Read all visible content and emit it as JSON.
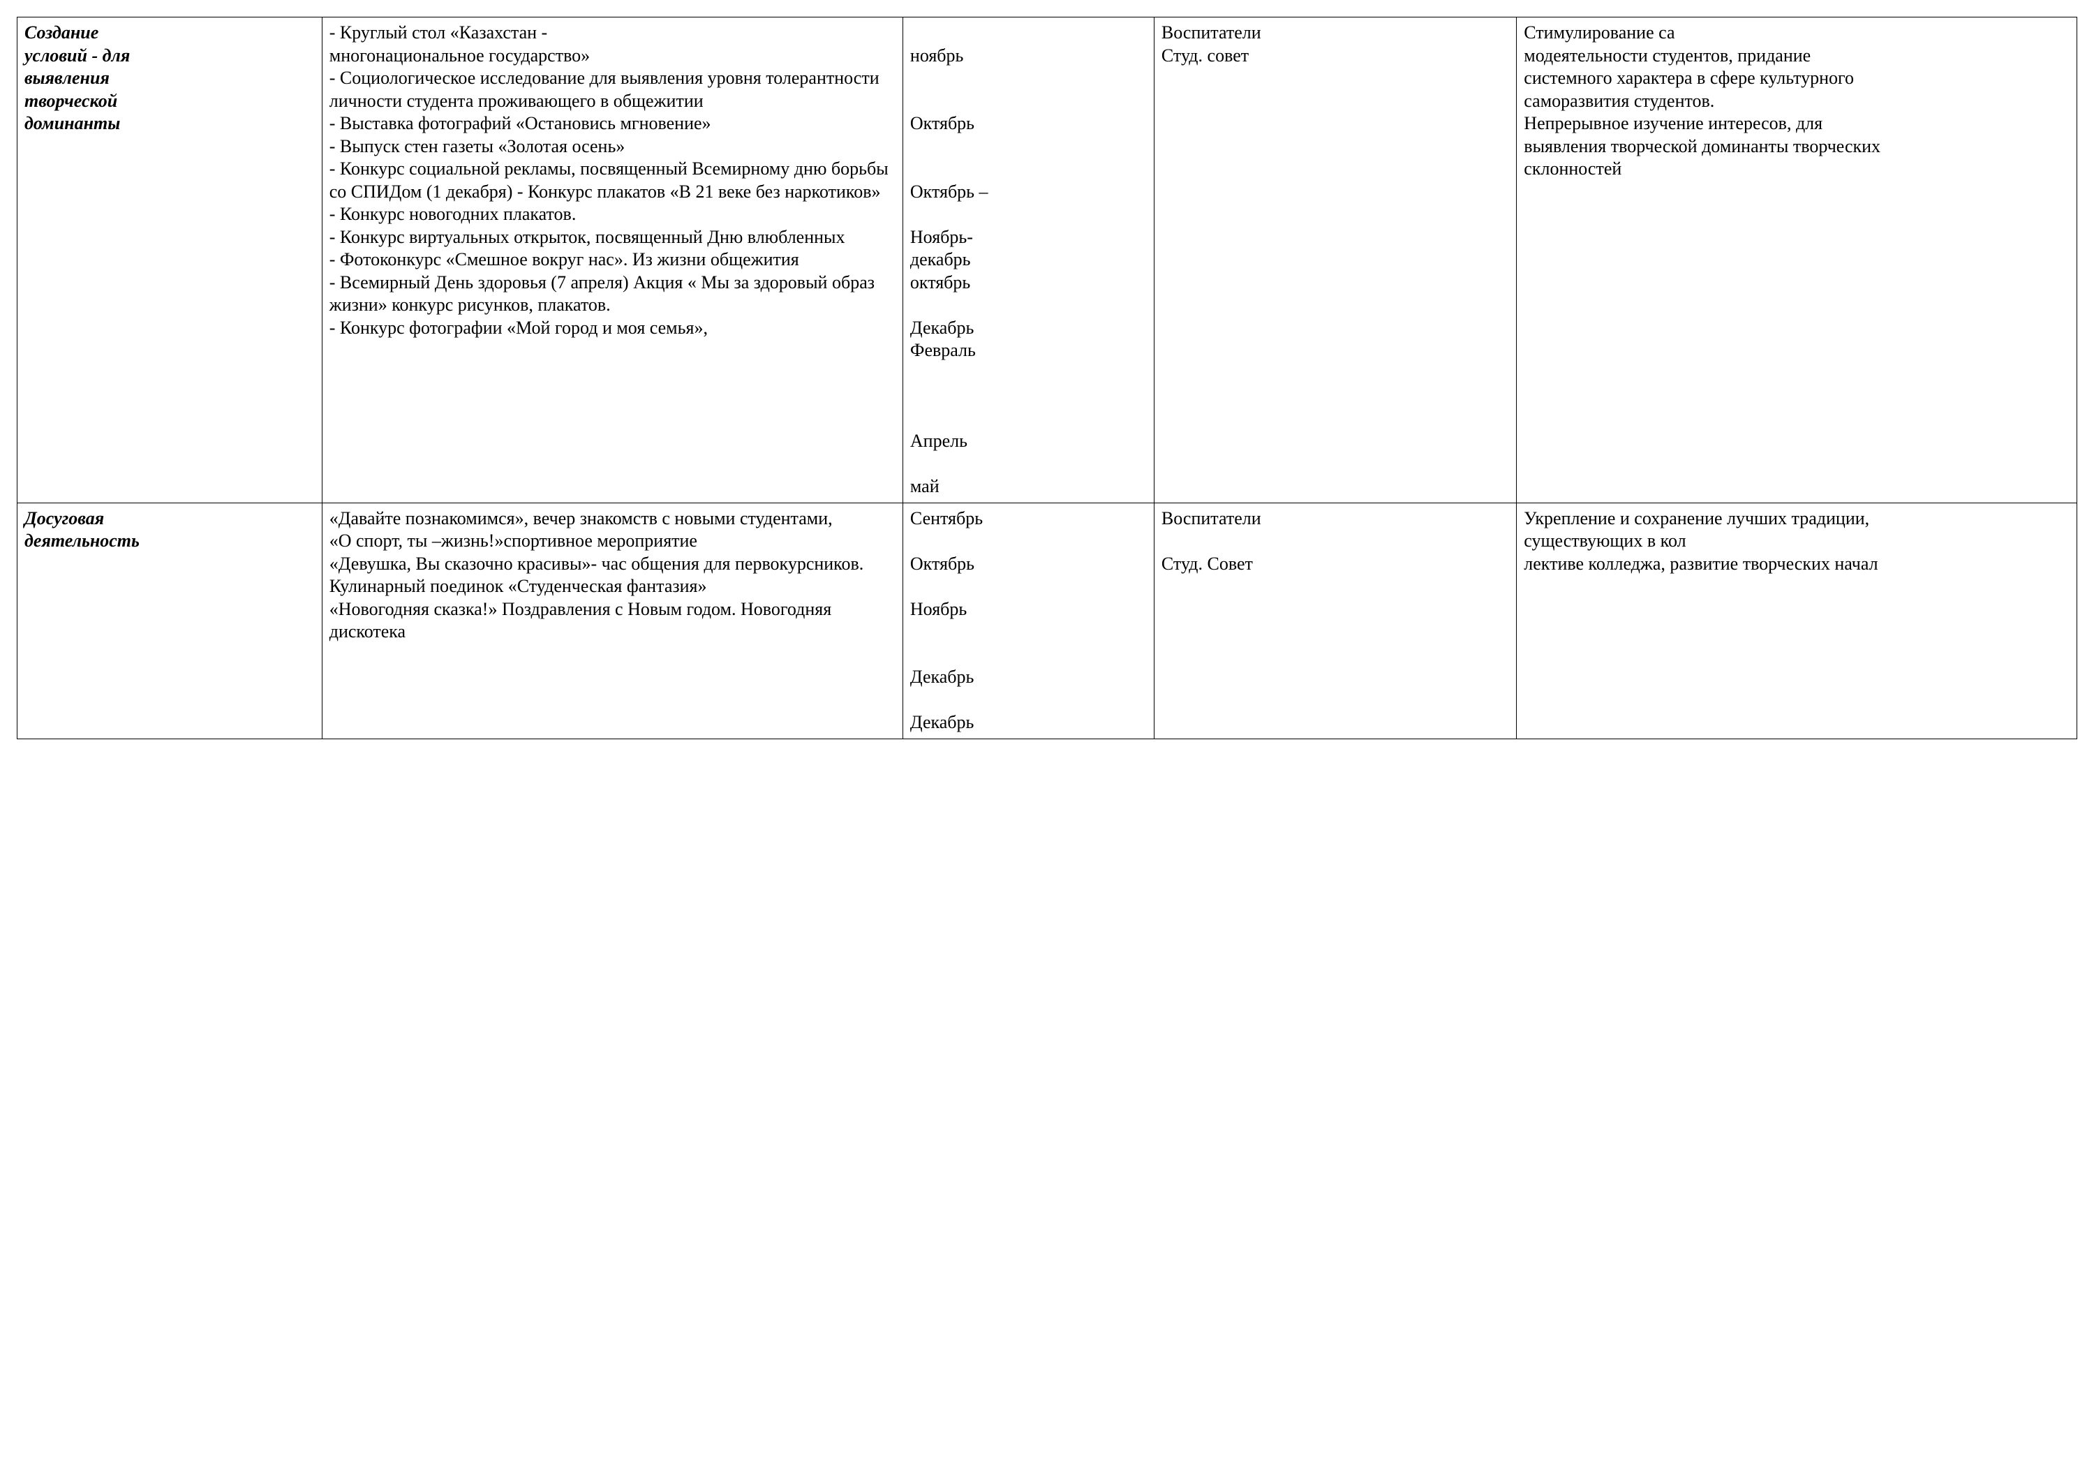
{
  "table": {
    "border_color": "#000000",
    "background_color": "#ffffff",
    "text_color": "#000000",
    "font_family": "Times New Roman",
    "font_size_pt": 20,
    "column_widths_pct": [
      14.8,
      28.2,
      12.2,
      17.6,
      18.2,
      9.0
    ],
    "rows": [
      {
        "cells": [
          {
            "style": "bold-italic",
            "lines": [
              "Создание",
              "условий -  для",
              "выявления",
              "творческой",
              "доминанты"
            ]
          },
          {
            "lines": [
              "- Круглый стол «Казахстан -",
              "многонациональное государство»",
              "- Социологическое исследование для выявления уровня толерантности личности студента проживающего в общежитии",
              "- Выставка фотографий «Остановись мгновение»",
              "- Выпуск стен газеты «Золотая осень»",
              "- Конкурс социальной рекламы, посвященный Всемирному дню борьбы со СПИДом (1 декабря)   - Конкурс плакатов «В 21 веке без наркотиков»",
              " - Конкурс новогодних плакатов.",
              " - Конкурс виртуальных открыток, посвященный Дню влюбленных",
              " - Фотоконкурс «Смешное вокруг нас». Из жизни общежития",
              " - Всемирный День здоровья (7 апреля) Акция « Мы за здоровый образ жизни» конкурс рисунков, плакатов.",
              " - Конкурс фотографии «Мой город и моя семья»,",
              "",
              "",
              ""
            ]
          },
          {
            "lines": [
              "",
              "ноябрь",
              "",
              "",
              "Октябрь",
              "",
              "",
              "Октябрь –",
              "",
              "Ноябрь-",
              "декабрь",
              "октябрь",
              "",
              "Декабрь",
              "Февраль",
              "",
              "",
              "",
              "Апрель",
              "",
              "май"
            ]
          },
          {
            "lines": [
              "Воспитатели",
              "Студ. совет"
            ]
          },
          {
            "lines": [
              "Стимулирование са",
              "модеятельности студентов, придание системного характера в сфере культурного саморазвития студентов.",
              "Непрерывное изучение интересов, для выявления творческой доминанты творческих склонностей"
            ]
          },
          {
            "lines": []
          }
        ]
      },
      {
        "cells": [
          {
            "style": "bold-italic",
            "lines": [
              "Досуговая",
              "деятельность"
            ]
          },
          {
            "lines": [
              "«Давайте познакомимся», вечер знакомств с новыми студентами,",
              "«О спорт, ты –жизнь!»спортивное мероприятие",
              "«Девушка, Вы сказочно красивы»- час общения для первокурсников.",
              "Кулинарный поединок «Студенческая фантазия»",
              "«Новогодняя сказка!» Поздравления с Новым годом. Новогодняя дискотека"
            ]
          },
          {
            "lines": [
              "Сентябрь",
              "",
              "Октябрь",
              "",
              "Ноябрь",
              "",
              "",
              "Декабрь",
              "",
              "Декабрь"
            ]
          },
          {
            "lines": [
              "Воспитатели",
              "",
              "Студ. Совет"
            ]
          },
          {
            "lines": [
              "Укрепление и сохранение лучших традиции, существующих в кол",
              "лективе колледжа, развитие творческих начал"
            ]
          },
          {
            "lines": []
          }
        ]
      }
    ]
  }
}
